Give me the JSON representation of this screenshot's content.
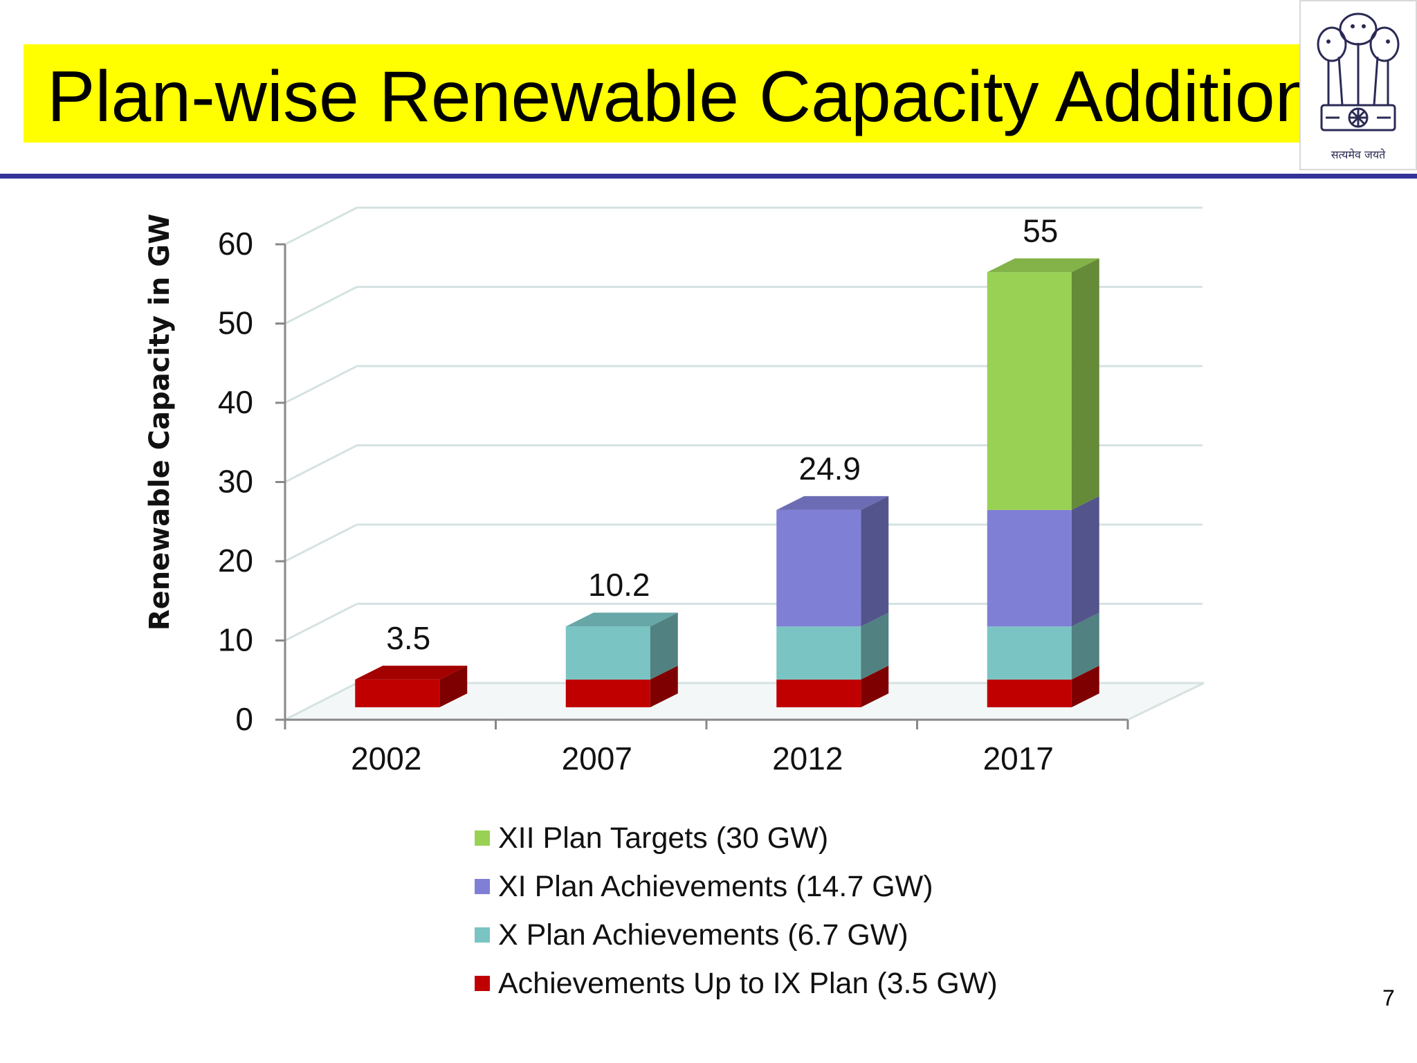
{
  "slide": {
    "title": "Plan-wise Renewable Capacity Addition",
    "page_number": "7",
    "emblem_motto": "सत्यमेव जयते",
    "colors": {
      "title_band": "#ffff00",
      "rule": "#333399"
    }
  },
  "chart_data": {
    "type": "bar",
    "stacked": true,
    "three_d": true,
    "ylabel": "Renewable Capacity in GW",
    "xlabel": "",
    "ylim": [
      0,
      60
    ],
    "yticks": [
      0,
      10,
      20,
      30,
      40,
      50,
      60
    ],
    "grid": true,
    "legend_position": "bottom",
    "categories": [
      "2002",
      "2007",
      "2012",
      "2017"
    ],
    "series": [
      {
        "name": "Achievements Up to IX Plan (3.5 GW)",
        "color": "#c00000",
        "values": [
          3.5,
          3.5,
          3.5,
          3.5
        ]
      },
      {
        "name": "X Plan Achievements (6.7 GW)",
        "color": "#7ac4c4",
        "values": [
          0,
          6.7,
          6.7,
          6.7
        ]
      },
      {
        "name": "XI Plan Achievements (14.7 GW)",
        "color": "#7f7fd5",
        "values": [
          0,
          0,
          14.7,
          14.7
        ]
      },
      {
        "name": "XII Plan Targets (30 GW)",
        "color": "#99d155",
        "values": [
          0,
          0,
          0,
          30
        ]
      }
    ],
    "totals": [
      "3.5",
      "10.2",
      "24.9",
      "55"
    ]
  }
}
